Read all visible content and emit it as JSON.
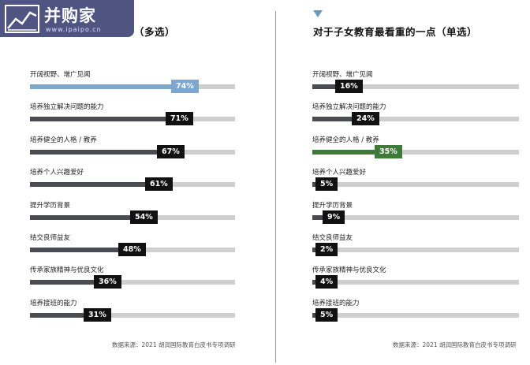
{
  "watermark": {
    "text": "并购家",
    "url": "www.ipaipo.cn"
  },
  "left_panel": {
    "title": "（多选）",
    "source": "数据来源：2021 胡润国际教育白皮书专项调研"
  },
  "right_panel": {
    "title": "对于子女教育最看重的一点（单选）",
    "source": "数据来源：2021 胡润国际教育白皮书专项调研"
  },
  "chart_data": [
    {
      "type": "bar",
      "orientation": "horizontal",
      "title": "（多选）",
      "categories": [
        "开阔视野、增广见闻",
        "培养独立解决问题的能力",
        "培养健全的人格 / 教养",
        "培养个人兴趣爱好",
        "提升学历背景",
        "结交良师益友",
        "传承家族精神与优良文化",
        "培养接班的能力"
      ],
      "values": [
        74,
        71,
        67,
        61,
        54,
        48,
        36,
        31
      ],
      "labels": [
        "74%",
        "71%",
        "67%",
        "61%",
        "54%",
        "48%",
        "36%",
        "31%"
      ],
      "unit": "%",
      "highlight_index": 0,
      "colors": {
        "bar": "#4a4c52",
        "track": "#cfcfcf",
        "highlight": "#7ea6cf",
        "tag": "#111111",
        "highlight_tag": "#7ea6cf"
      }
    },
    {
      "type": "bar",
      "orientation": "horizontal",
      "title": "对于子女教育最看重的一点（单选）",
      "categories": [
        "开阔视野、增广见闻",
        "培养独立解决问题的能力",
        "培养健全的人格 / 教养",
        "培养个人兴趣爱好",
        "提升学历背景",
        "结交良师益友",
        "传承家族精神与优良文化",
        "培养接班的能力"
      ],
      "values": [
        16,
        24,
        35,
        5,
        9,
        2,
        4,
        5
      ],
      "labels": [
        "16%",
        "24%",
        "35%",
        "5%",
        "9%",
        "2%",
        "4%",
        "5%"
      ],
      "unit": "%",
      "highlight_index": 2,
      "colors": {
        "bar": "#4a4c52",
        "track": "#cfcfcf",
        "highlight": "#3f7a3a",
        "tag": "#111111",
        "highlight_tag": "#3f7a3a"
      }
    }
  ]
}
